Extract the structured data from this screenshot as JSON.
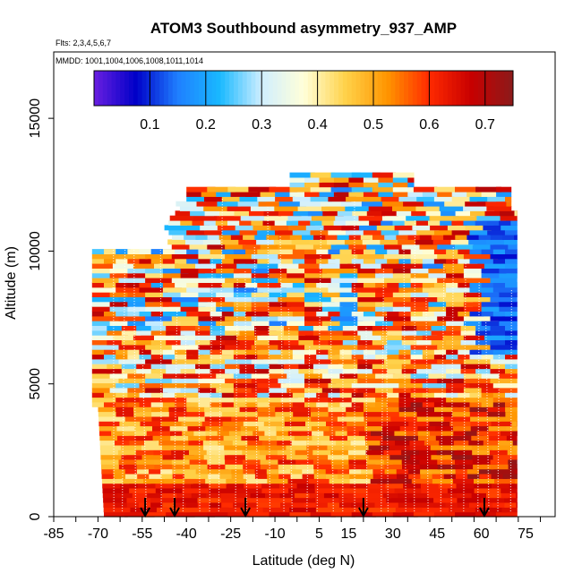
{
  "chart_data": {
    "type": "heatmap",
    "title": "ATOM3 Southbound asymmetry_937_AMP",
    "subtitle_flights": "Flts: 2,3,4,5,6,7",
    "subtitle_dates": "MMDD: 1001,1004,1006,1008,1011,1014",
    "xlabel": "Latitude (deg N)",
    "ylabel": "Altitude (m)",
    "xlim": [
      -85,
      85
    ],
    "ylim": [
      0,
      17500
    ],
    "x_tick_labels": [
      "-85",
      "-70",
      "-55",
      "-40",
      "-25",
      "-10",
      "5",
      "15",
      "30",
      "45",
      "60",
      "75"
    ],
    "x_tick_values": [
      -85,
      -70,
      -55,
      -40,
      -25,
      -10,
      5,
      15,
      30,
      45,
      60,
      75
    ],
    "y_tick_labels": [
      "0",
      "5000",
      "10000",
      "15000"
    ],
    "y_tick_values": [
      0,
      5000,
      10000,
      15000
    ],
    "colorbar": {
      "range": [
        0.0,
        0.75
      ],
      "tick_labels": [
        "0.1",
        "0.2",
        "0.3",
        "0.4",
        "0.5",
        "0.6",
        "0.7"
      ],
      "tick_values": [
        0.1,
        0.2,
        0.3,
        0.4,
        0.5,
        0.6,
        0.7
      ],
      "colors": [
        "#6a1fe0",
        "#0000c8",
        "#1f7fff",
        "#19b9ff",
        "#cfeeff",
        "#ffffd9",
        "#ffd24a",
        "#ff9500",
        "#ff2a00",
        "#c80000",
        "#8b1a1a"
      ]
    },
    "arrow_latitudes": [
      -54,
      -44,
      -20,
      20,
      61
    ],
    "data_extent": {
      "lat_range": [
        -68,
        72
      ],
      "alt_range": [
        0,
        12800
      ],
      "description_values": "asymmetry parameter ranges ~0.05 to 0.75; high (0.55-0.7) near surface, mixed 0.2-0.7 aloft"
    }
  }
}
